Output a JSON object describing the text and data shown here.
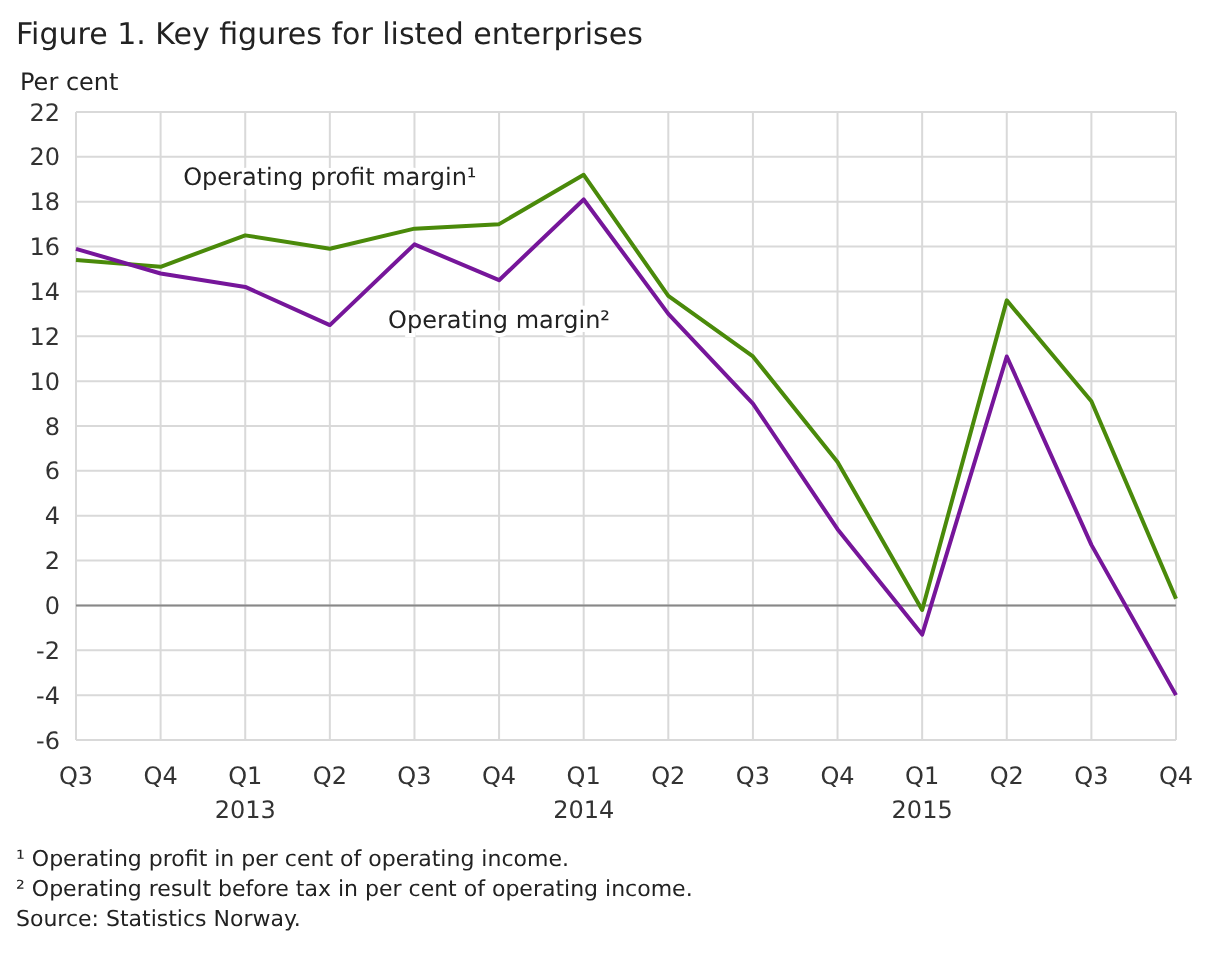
{
  "chart_data": {
    "type": "line",
    "title": "Figure 1. Key figures for listed enterprises",
    "ylabel": "Per cent",
    "categories": [
      "Q3",
      "Q4",
      "Q1\n2013",
      "Q2",
      "Q3",
      "Q4",
      "Q1\n2014",
      "Q2",
      "Q3",
      "Q4",
      "Q1\n2015",
      "Q2",
      "Q3",
      "Q4"
    ],
    "series": [
      {
        "name": "Operating profit margin¹",
        "color": "#4a8a0a",
        "values": [
          15.4,
          15.1,
          16.5,
          15.9,
          16.8,
          17.0,
          19.2,
          13.8,
          11.1,
          6.4,
          -0.2,
          13.6,
          9.1,
          0.3
        ]
      },
      {
        "name": "Operating margin²",
        "color": "#76169a",
        "values": [
          15.9,
          14.8,
          14.2,
          12.5,
          16.1,
          14.5,
          18.1,
          13.0,
          9.0,
          3.4,
          -1.3,
          11.1,
          2.7,
          -4.0
        ]
      }
    ],
    "ylim": [
      -6,
      22
    ],
    "yticks": [
      -6,
      -4,
      -2,
      0,
      2,
      4,
      6,
      8,
      10,
      12,
      14,
      16,
      18,
      20,
      22
    ],
    "ref_lines": [
      {
        "axis": "y",
        "value": 0,
        "color": "#888888"
      }
    ],
    "grid": true,
    "marker": "none",
    "line_style": "solid",
    "annotations": [
      "¹ Operating profit in per cent of operating income.",
      "² Operating result before tax in per cent of operating income.",
      "Source: Statistics Norway."
    ]
  }
}
